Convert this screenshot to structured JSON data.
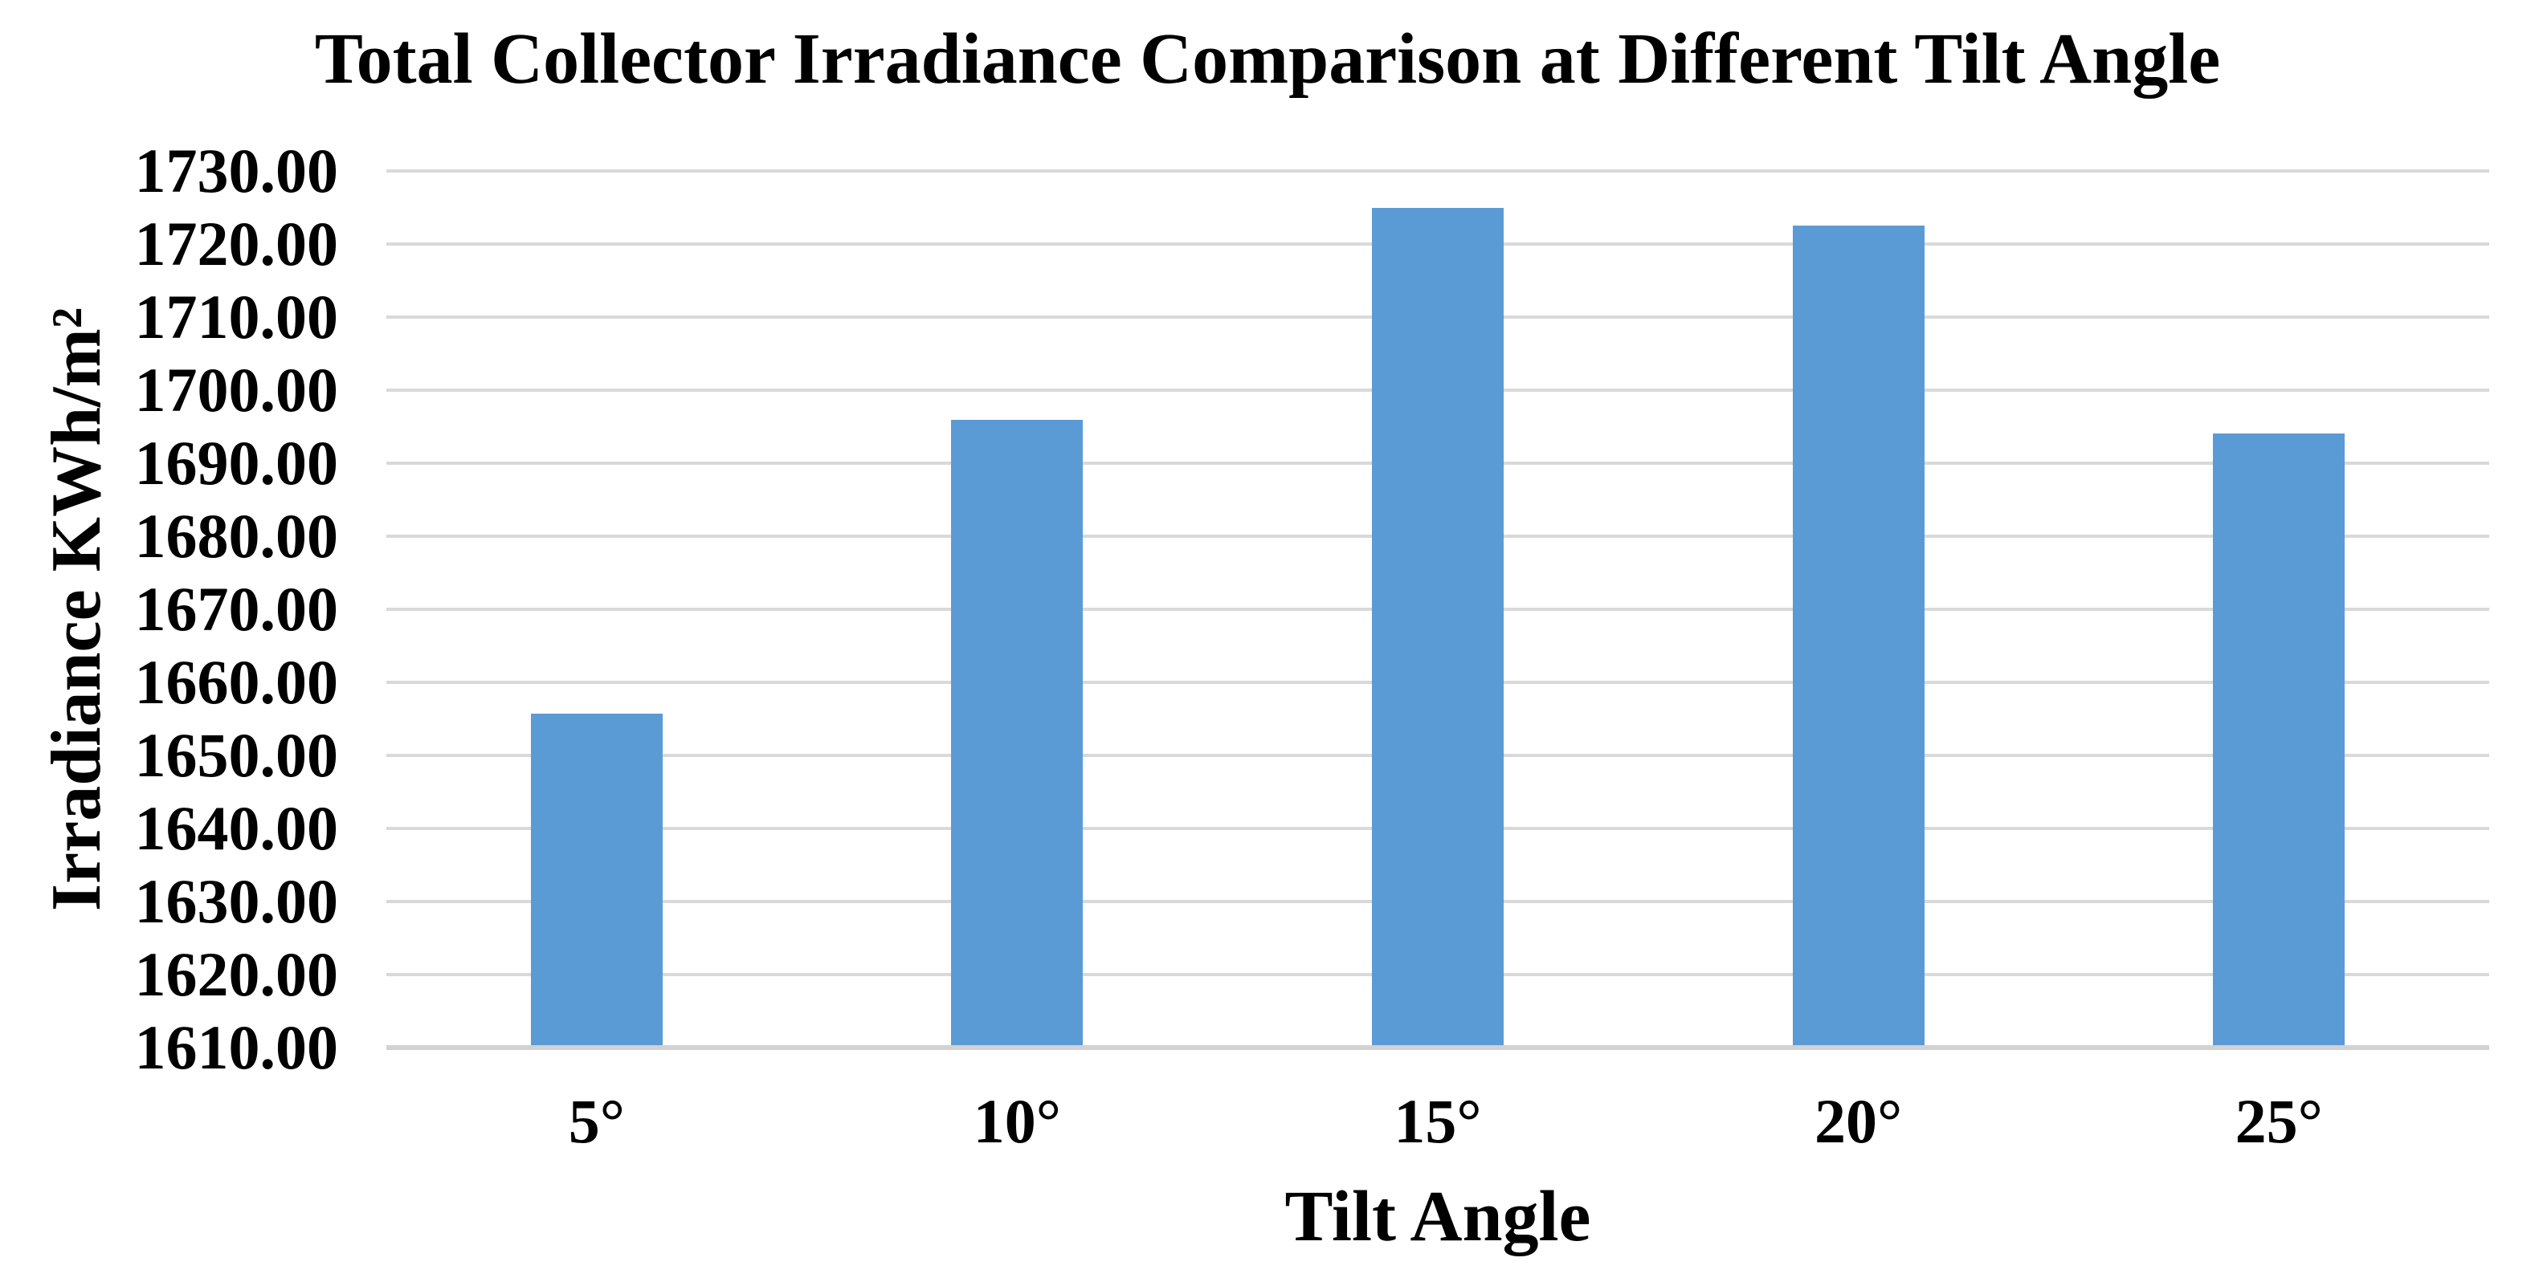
{
  "chart_data": {
    "type": "bar",
    "title": "Total Collector Irradiance Comparison at Different Tilt Angle",
    "xlabel": "Tilt Angle",
    "ylabel": "Irradiance KWh/m²",
    "categories": [
      "5°",
      "10°",
      "15°",
      "20°",
      "25°"
    ],
    "values": [
      1655.7,
      1695.9,
      1725.0,
      1722.5,
      1694.1
    ],
    "ylim": [
      1610,
      1730
    ],
    "ytick_step": 10,
    "ytick_labels": [
      "1730.00",
      "1720.00",
      "1710.00",
      "1700.00",
      "1690.00",
      "1680.00",
      "1670.00",
      "1660.00",
      "1650.00",
      "1640.00",
      "1630.00",
      "1620.00",
      "1610.00"
    ],
    "grid": true,
    "legend_position": "none",
    "bar_color": "#5B9BD5",
    "gridline_color": "#D9D9D9",
    "axis_line_color": "#D2D2D2",
    "text_color": "#000000",
    "background_color": "#FFFFFF"
  }
}
